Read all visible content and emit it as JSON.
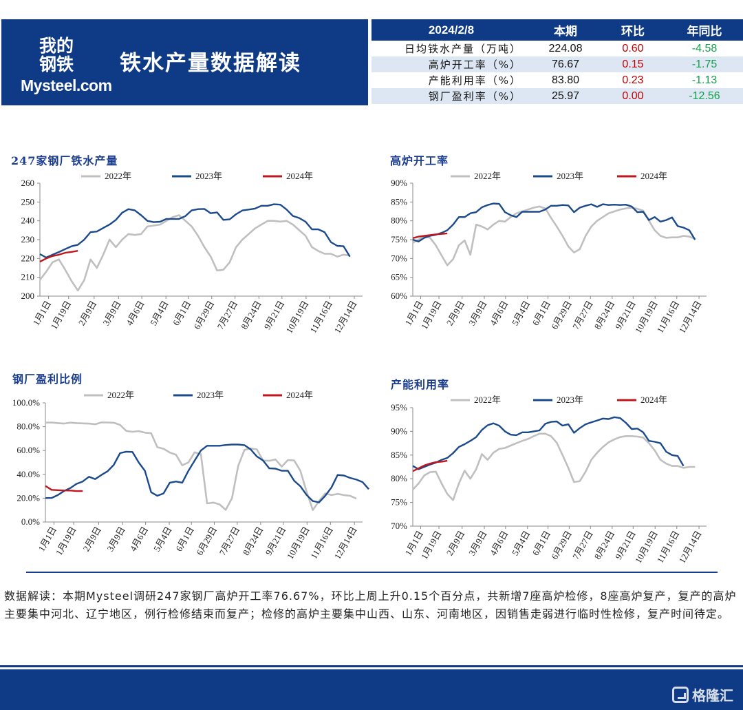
{
  "header": {
    "logo_cn": "我的钢铁",
    "logo_en": "Mysteel.com",
    "title": "铁水产量数据解读"
  },
  "kpi_table": {
    "columns": [
      "2024/2/8",
      "本期",
      "环比",
      "年同比"
    ],
    "rows": [
      {
        "name": "日均铁水产量（万吨）",
        "current": "224.08",
        "wow": "0.60",
        "yoy": "-4.58"
      },
      {
        "name": "高炉开工率（%）",
        "current": "76.67",
        "wow": "0.15",
        "yoy": "-1.75"
      },
      {
        "name": "产能利用率（%）",
        "current": "83.80",
        "wow": "0.23",
        "yoy": "-1.13"
      },
      {
        "name": "钢厂盈利率（%）",
        "current": "25.97",
        "wow": "0.00",
        "yoy": "-12.56"
      }
    ]
  },
  "colors": {
    "brand": "#0f3a85",
    "s2022": "#bfbfbf",
    "s2023": "#1a4a8c",
    "s2024": "#c0161d",
    "up": "#c00000",
    "down": "#13a04a"
  },
  "chart_data": [
    {
      "type": "line",
      "title": "247家钢厂铁水产量",
      "x_ticks": [
        "1月1日",
        "1月19日",
        "2月9日",
        "3月9日",
        "4月6日",
        "5月4日",
        "6月1日",
        "6月29日",
        "7月27日",
        "8月24日",
        "9月21日",
        "10月19日",
        "11月16日",
        "12月14日"
      ],
      "ylim": [
        200,
        260
      ],
      "y_ticks": [
        "200",
        "210",
        "220",
        "230",
        "240",
        "250",
        "260"
      ],
      "legend": [
        "2022年",
        "2023年",
        "2024年"
      ],
      "series": [
        {
          "name": "2022年",
          "values": [
            208.6,
            213,
            218,
            219.5,
            214,
            208,
            203,
            208.5,
            219.5,
            215,
            222,
            230,
            226,
            230,
            233,
            232.5,
            233,
            237,
            237.5,
            238,
            240,
            242,
            243,
            240,
            237,
            232,
            226,
            221,
            213.6,
            214,
            218,
            226,
            230,
            233,
            236,
            238,
            240,
            240,
            239.6,
            240,
            238,
            235,
            232,
            226,
            224,
            222.5,
            222.5,
            221,
            222,
            221.5
          ]
        },
        {
          "name": "2023年",
          "values": [
            222.3,
            220.5,
            222,
            223.4,
            225,
            226.5,
            227.3,
            230,
            234,
            234.3,
            236.2,
            238,
            240.5,
            244.3,
            246.2,
            245.6,
            243,
            240,
            239.3,
            239.5,
            241,
            241,
            241,
            242.5,
            245.6,
            246.2,
            246.3,
            244,
            244.5,
            240.5,
            240.8,
            243.5,
            245.5,
            246,
            246.5,
            248,
            248,
            248.8,
            248.6,
            246,
            242.6,
            241.5,
            239.5,
            235.5,
            235.5,
            234,
            228.7,
            226.7,
            226.5,
            221
          ]
        },
        {
          "name": "2024年",
          "values": [
            218.3,
            220,
            221.3,
            222,
            223,
            223.5,
            224.08
          ]
        }
      ]
    },
    {
      "type": "line",
      "title": "高炉开工率",
      "x_ticks": [
        "1月1日",
        "1月19日",
        "2月9日",
        "3月9日",
        "4月6日",
        "5月4日",
        "6月1日",
        "6月29日",
        "7月27日",
        "8月24日",
        "9月21日",
        "10月19日",
        "11月16日",
        "12月14日"
      ],
      "ylim": [
        60,
        90
      ],
      "y_ticks": [
        "60%",
        "65%",
        "70%",
        "75%",
        "80%",
        "85%",
        "90%"
      ],
      "legend": [
        "2022年",
        "2023年",
        "2024年"
      ],
      "series": [
        {
          "name": "2022年",
          "values": [
            74.2,
            75,
            76,
            75.5,
            73.5,
            70.8,
            68.2,
            69.8,
            73.5,
            74.8,
            71,
            79,
            78.5,
            77.7,
            79,
            80,
            79.8,
            81,
            82,
            82.5,
            83,
            83.5,
            83.8,
            83.3,
            80.8,
            78.5,
            76,
            73.2,
            71.6,
            72.5,
            76,
            78.5,
            80,
            81,
            82,
            82.5,
            83,
            83.3,
            83.5,
            83.2,
            82.7,
            80,
            77.5,
            76,
            75.5,
            75.6,
            75.6,
            76,
            75.8,
            75.2
          ]
        },
        {
          "name": "2023年",
          "values": [
            75,
            74.5,
            75.5,
            76,
            76.3,
            76.8,
            77.5,
            79,
            81,
            81,
            82,
            82.3,
            83.6,
            84.2,
            84.6,
            84.5,
            82.3,
            81.5,
            81,
            82.4,
            82.4,
            82.4,
            82.4,
            83,
            84,
            84,
            84.2,
            84.1,
            82.3,
            83.5,
            84,
            84.4,
            83.7,
            84.4,
            84.2,
            84.3,
            84.2,
            84.3,
            83.8,
            82.3,
            82.4,
            80.2,
            81,
            79.8,
            80.2,
            80.9,
            78.6,
            78.2,
            77.5,
            75
          ]
        },
        {
          "name": "2024年",
          "values": [
            75.4,
            75.8,
            76,
            76.2,
            76.4,
            76.52,
            76.67
          ]
        }
      ]
    },
    {
      "type": "line",
      "title": "钢厂盈利比例",
      "x_ticks": [
        "1月1日",
        "1月19日",
        "2月9日",
        "3月9日",
        "4月6日",
        "5月4日",
        "6月1日",
        "6月29日",
        "7月27日",
        "8月24日",
        "9月21日",
        "10月19日",
        "11月16日",
        "12月14日"
      ],
      "ylim": [
        0,
        100
      ],
      "y_ticks": [
        "0.0%",
        "20.0%",
        "40.0%",
        "60.0%",
        "80.0%",
        "100.0%"
      ],
      "legend": [
        "2022年",
        "2023年",
        "2024年"
      ],
      "series": [
        {
          "name": "2022年",
          "values": [
            83.4,
            83.5,
            83,
            82.6,
            83.4,
            83,
            82.8,
            82.6,
            82,
            83.6,
            83.5,
            83.3,
            81.5,
            76.5,
            75.7,
            76.3,
            75,
            74.5,
            62.8,
            61.5,
            58.3,
            56.5,
            47.6,
            50,
            58.5,
            57,
            15.6,
            16.3,
            14.8,
            10.2,
            20,
            47,
            60.5,
            61.8,
            61,
            51.6,
            51.4,
            52.5,
            46.5,
            52,
            51.6,
            43,
            25.6,
            10,
            17.6,
            24,
            22.6,
            23.6,
            22.6,
            22,
            19.6
          ]
        },
        {
          "name": "2023年",
          "values": [
            20.1,
            20.2,
            22.6,
            26,
            28.5,
            32,
            34,
            38,
            36,
            39.5,
            42.6,
            48,
            57.8,
            59,
            58.8,
            50,
            43,
            25,
            22,
            24,
            33,
            34,
            33,
            43,
            51.5,
            60,
            64,
            64,
            64,
            64.6,
            65,
            65,
            64.5,
            61,
            55,
            51.6,
            45,
            44.8,
            43,
            43,
            34.6,
            30,
            22.7,
            17.6,
            16.5,
            22,
            29,
            39.5,
            39,
            37,
            35.6,
            33.5,
            27.6
          ]
        },
        {
          "name": "2024年",
          "values": [
            30.3,
            27,
            26.7,
            26.5,
            26.4,
            25.97,
            25.97
          ]
        }
      ]
    },
    {
      "type": "line",
      "title": "产能利用率",
      "x_ticks": [
        "1月1日",
        "1月19日",
        "2月9日",
        "3月9日",
        "4月6日",
        "5月4日",
        "6月1日",
        "6月29日",
        "7月27日",
        "8月24日",
        "9月21日",
        "10月19日",
        "11月16日",
        "12月14日"
      ],
      "ylim": [
        70,
        95
      ],
      "y_ticks": [
        "70%",
        "75%",
        "80%",
        "85%",
        "90%",
        "95%"
      ],
      "legend": [
        "2022年",
        "2023年",
        "2024年"
      ],
      "series": [
        {
          "name": "2022年",
          "values": [
            77.7,
            79,
            80.7,
            81.4,
            81.5,
            79,
            76.8,
            75.5,
            79,
            81.7,
            80,
            82,
            85.2,
            84,
            85.5,
            86.3,
            86.5,
            87,
            87.5,
            88,
            88.4,
            89,
            89.5,
            89.5,
            89,
            87.6,
            85,
            82.3,
            79.3,
            79.5,
            81.5,
            84,
            85.5,
            86.7,
            87.7,
            88.3,
            88.8,
            89,
            89,
            88.9,
            88.7,
            87.5,
            86,
            84,
            83.2,
            82.7,
            82.7,
            82.3,
            82.5,
            82.5
          ]
        },
        {
          "name": "2023年",
          "values": [
            82.7,
            82,
            82.5,
            83,
            83.4,
            84,
            84.4,
            85.4,
            86.7,
            87.3,
            88,
            88.8,
            90.3,
            91.3,
            91.7,
            91.2,
            90,
            89.3,
            89.2,
            89.8,
            89.8,
            90,
            90.2,
            91.6,
            92,
            92.1,
            91.2,
            91.5,
            89.7,
            90.7,
            91.5,
            91.9,
            92.3,
            92.7,
            92.6,
            93,
            92.8,
            91.8,
            90.5,
            90.6,
            89.8,
            88,
            87.8,
            87.5,
            85.7,
            85,
            84.8,
            82.7
          ]
        },
        {
          "name": "2024年",
          "values": [
            81.6,
            82.2,
            82.8,
            83.2,
            83.5,
            83.6,
            83.8
          ]
        }
      ]
    }
  ],
  "note": "数据解读：本期Mysteel调研247家钢厂高炉开工率76.67%，环比上周上升0.15个百分点，共新增7座高炉检修，8座高炉复产，复产的高炉主要集中河北、辽宁地区，例行检修结束而复产；检修的高炉主要集中山西、山东、河南地区，因销售走弱进行临时性检修，复产时间待定。",
  "footer": {
    "watermark": "格隆汇"
  }
}
